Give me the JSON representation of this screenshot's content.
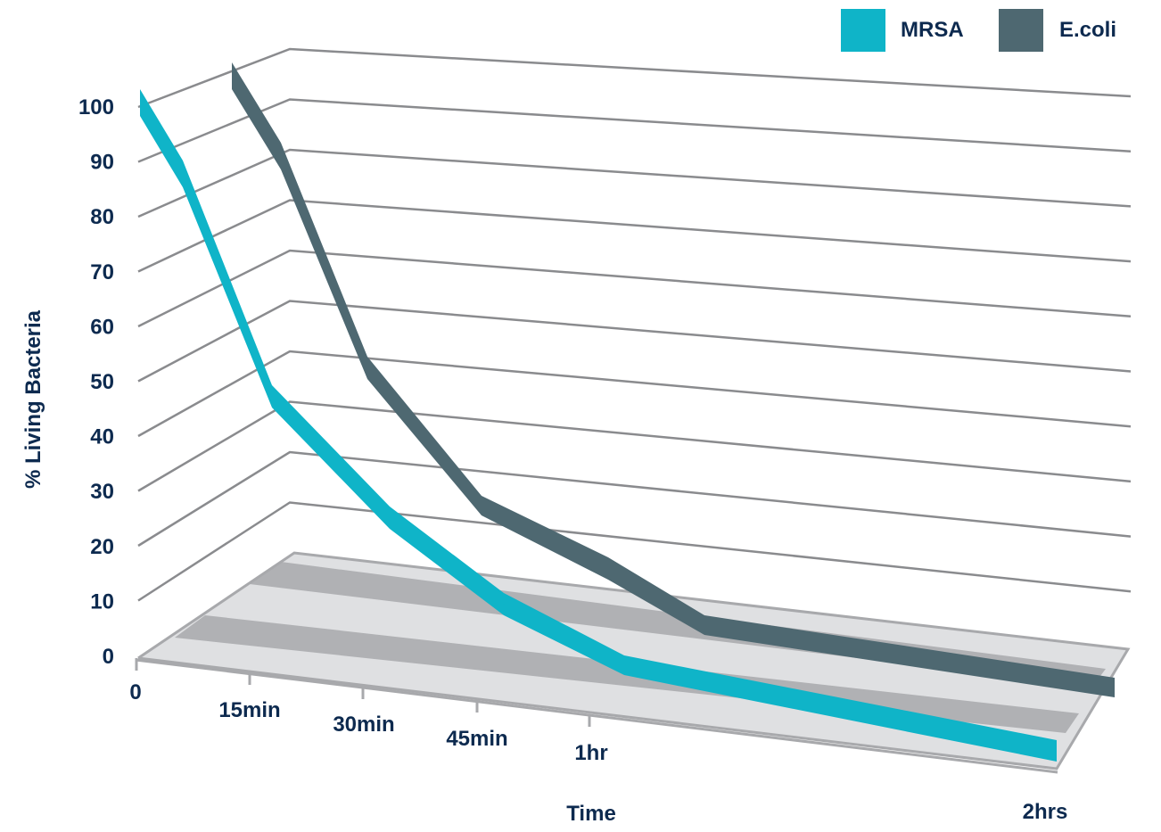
{
  "chart_data": {
    "type": "line",
    "title": "",
    "xlabel": "Time",
    "ylabel": "% Living Bacteria",
    "x": [
      "0",
      "15min",
      "30min",
      "45min",
      "1hr",
      "2hrs"
    ],
    "series": [
      {
        "name": "MRSA",
        "values": [
          100,
          90,
          45,
          25,
          15,
          5
        ],
        "color": "#0fb4c8"
      },
      {
        "name": "E.coli",
        "values": [
          100,
          90,
          50,
          30,
          20,
          5
        ],
        "color": "#4e6871"
      }
    ],
    "y_ticks": [
      "0",
      "10",
      "20",
      "30",
      "40",
      "50",
      "60",
      "70",
      "80",
      "90",
      "100"
    ],
    "ylim": [
      0,
      100
    ],
    "grid": true,
    "legend_position": "top-right",
    "style": "3d"
  }
}
